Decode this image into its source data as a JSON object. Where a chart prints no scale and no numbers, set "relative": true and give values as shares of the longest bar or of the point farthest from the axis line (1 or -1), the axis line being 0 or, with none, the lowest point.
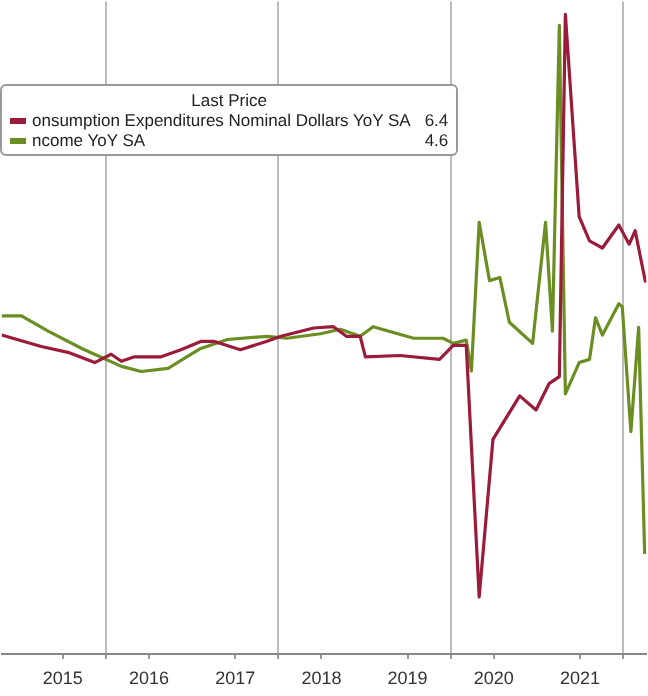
{
  "chart_data": {
    "type": "line",
    "relative": true,
    "legend_title": "Last Price",
    "legend": "top left",
    "grid": "x",
    "marker": "none",
    "line_style": "solid",
    "annotations": [
      "6.4",
      "4.6"
    ],
    "xlim": [
      2014.79,
      2022.27
    ],
    "xticks": [
      {
        "value": 2015.5,
        "label": "2015"
      },
      {
        "value": 2016,
        "label": null
      },
      {
        "value": 2016.5,
        "label": "2016"
      },
      {
        "value": 2017.5,
        "label": "2017"
      },
      {
        "value": 2018,
        "label": null
      },
      {
        "value": 2018.5,
        "label": "2018"
      },
      {
        "value": 2019.5,
        "label": "2019"
      },
      {
        "value": 2020,
        "label": null
      },
      {
        "value": 2020.5,
        "label": "2020"
      },
      {
        "value": 2021.5,
        "label": "2021"
      },
      {
        "value": 2022,
        "label": null
      }
    ],
    "series": [
      {
        "name": "onsumption Expenditures Nominal Dollars YoY SA",
        "color": "#9b1b3a",
        "x": [
          2014.79,
          2015.25,
          2015.56,
          2015.87,
          2016.06,
          2016.18,
          2016.33,
          2016.64,
          2016.87,
          2017.1,
          2017.26,
          2017.56,
          2017.86,
          2018.03,
          2018.41,
          2018.64,
          2018.79,
          2018.95,
          2019.01,
          2019.41,
          2019.87,
          2020.03,
          2020.18,
          2020.33,
          2020.49,
          2020.8,
          2020.99,
          2021.14,
          2021.26,
          2021.33,
          2021.49,
          2021.61,
          2021.76,
          2021.95,
          2022.07,
          2022.14,
          2022.26
        ],
        "values": [
          0.499,
          0.481,
          0.472,
          0.456,
          0.469,
          0.458,
          0.465,
          0.465,
          0.476,
          0.489,
          0.489,
          0.476,
          0.489,
          0.497,
          0.51,
          0.512,
          0.497,
          0.497,
          0.465,
          0.467,
          0.461,
          0.483,
          0.483,
          0.09,
          0.336,
          0.404,
          0.382,
          0.423,
          0.434,
          1,
          0.684,
          0.646,
          0.635,
          0.671,
          0.641,
          0.662,
          0.581
        ]
      },
      {
        "name": "ncome YoY SA",
        "color": "#6b8e23",
        "x": [
          2014.79,
          2015.02,
          2015.33,
          2015.72,
          2016.18,
          2016.41,
          2016.72,
          2017.1,
          2017.41,
          2017.87,
          2018.1,
          2018.49,
          2018.72,
          2018.95,
          2019.1,
          2019.57,
          2019.91,
          2020.03,
          2020.18,
          2020.24,
          2020.33,
          2020.45,
          2020.57,
          2020.68,
          2020.95,
          2021.1,
          2021.18,
          2021.26,
          2021.33,
          2021.49,
          2021.61,
          2021.68,
          2021.76,
          2021.95,
          2021.99,
          2022.09,
          2022.18,
          2022.25
        ],
        "values": [
          0.529,
          0.529,
          0.505,
          0.478,
          0.45,
          0.442,
          0.447,
          0.478,
          0.492,
          0.497,
          0.494,
          0.501,
          0.508,
          0.497,
          0.512,
          0.494,
          0.494,
          0.486,
          0.491,
          0.443,
          0.675,
          0.584,
          0.589,
          0.519,
          0.486,
          0.675,
          0.505,
          0.983,
          0.407,
          0.456,
          0.461,
          0.526,
          0.499,
          0.548,
          0.543,
          0.348,
          0.511,
          0.157
        ]
      }
    ]
  }
}
